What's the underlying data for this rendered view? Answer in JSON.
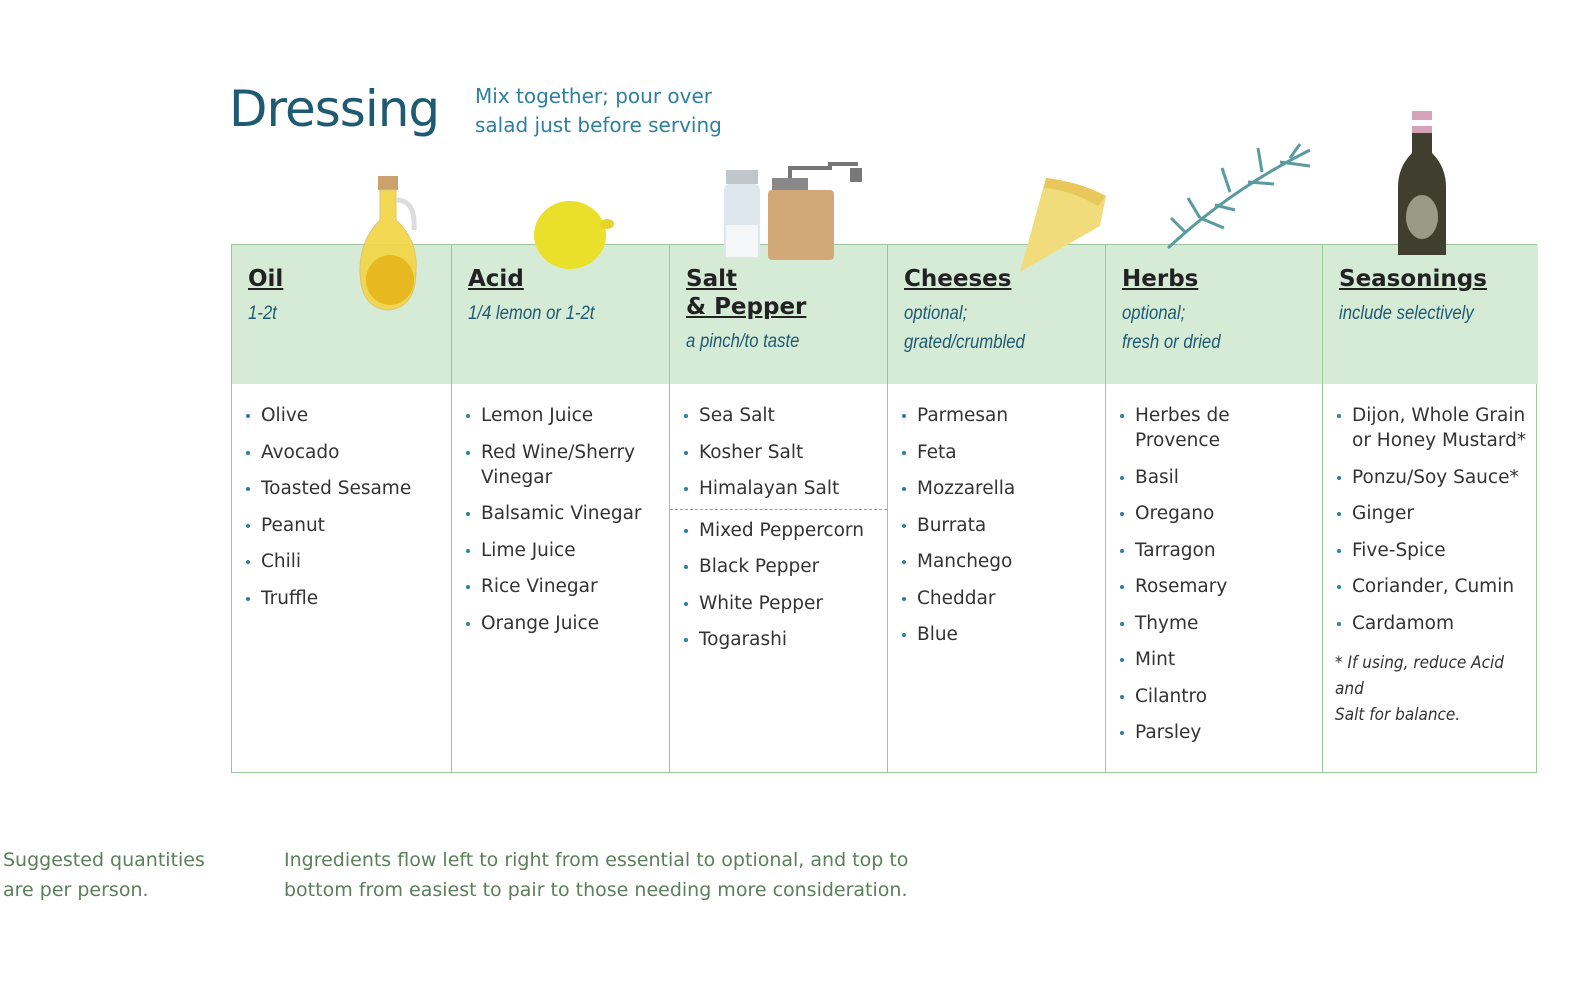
{
  "header": {
    "title": "Dressing",
    "subtitle": [
      "Mix together; pour over",
      "salad just before serving"
    ]
  },
  "columns": [
    {
      "title": [
        "Oil"
      ],
      "note": [
        "1-2t"
      ],
      "groups": [
        [
          "Olive",
          "Avocado",
          "Toasted Sesame",
          "Peanut",
          "Chili",
          "Truffle"
        ]
      ]
    },
    {
      "title": [
        "Acid"
      ],
      "note": [
        "1/4 lemon or 1-2t"
      ],
      "groups": [
        [
          "Lemon Juice",
          "Red Wine/Sherry Vinegar",
          "Balsamic Vinegar",
          "Lime Juice",
          "Rice Vinegar",
          "Orange Juice"
        ]
      ]
    },
    {
      "title": [
        "Salt",
        "& Pepper"
      ],
      "note": [
        "a pinch/to taste"
      ],
      "groups": [
        [
          "Sea Salt",
          "Kosher Salt",
          "Himalayan Salt"
        ],
        [
          "Mixed Peppercorn",
          "Black Pepper",
          "White Pepper",
          "Togarashi"
        ]
      ]
    },
    {
      "title": [
        "Cheeses"
      ],
      "note": [
        "optional;",
        "grated/crumbled"
      ],
      "groups": [
        [
          "Parmesan",
          "Feta",
          "Mozzarella",
          "Burrata",
          "Manchego",
          "Cheddar",
          "Blue"
        ]
      ]
    },
    {
      "title": [
        "Herbs"
      ],
      "note": [
        "optional;",
        "fresh or dried"
      ],
      "groups": [
        [
          "Herbes de Provence",
          "Basil",
          "Oregano",
          "Tarragon",
          "Rosemary",
          "Thyme",
          "Mint",
          "Cilantro",
          "Parsley"
        ]
      ]
    },
    {
      "title": [
        "Seasonings"
      ],
      "note": [
        "include selectively"
      ],
      "groups": [
        [
          "Dijon, Whole Grain or Honey Mustard*",
          "Ponzu/Soy Sauce*",
          "Ginger",
          "Five-Spice",
          "Coriander, Cumin",
          "Cardamom"
        ]
      ],
      "footnote": [
        "* If using, reduce Acid and",
        "Salt for balance."
      ]
    }
  ],
  "footer": {
    "left": [
      "Suggested quantities",
      "are per person."
    ],
    "right": [
      "Ingredients flow left to right from essential to optional, and top to",
      "bottom from easiest to pair to those needing more consideration."
    ]
  }
}
